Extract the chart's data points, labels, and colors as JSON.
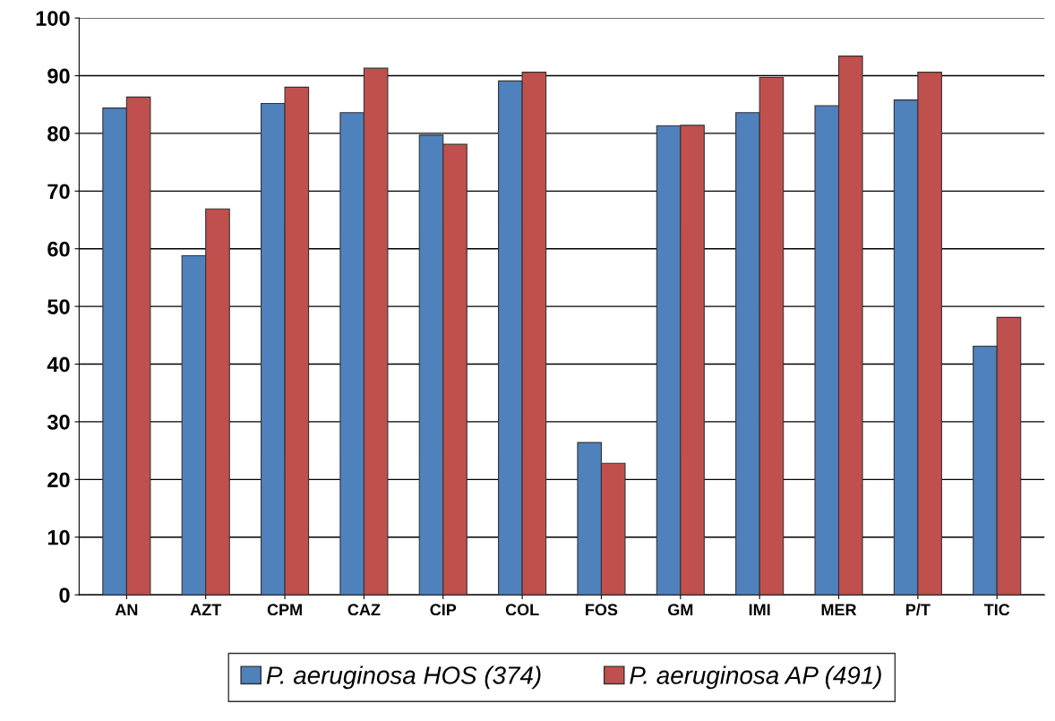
{
  "chart_data": {
    "type": "bar",
    "categories": [
      "AN",
      "AZT",
      "CPM",
      "CAZ",
      "CIP",
      "COL",
      "FOS",
      "GM",
      "IMI",
      "MER",
      "P/T",
      "TIC"
    ],
    "series": [
      {
        "name": "P. aeruginosa HOS (374)",
        "color": "#4f81bd",
        "values": [
          84.4,
          58.8,
          85.2,
          83.6,
          79.7,
          89.1,
          26.4,
          81.3,
          83.6,
          84.8,
          85.8,
          43.1
        ]
      },
      {
        "name": "P. aeruginosa AP (491)",
        "color": "#c0504d",
        "values": [
          86.3,
          66.9,
          88.0,
          91.3,
          78.1,
          90.6,
          22.8,
          81.4,
          89.7,
          93.4,
          90.6,
          48.1
        ]
      }
    ],
    "ylim": [
      0,
      100
    ],
    "yticks": [
      0,
      10,
      20,
      30,
      40,
      50,
      60,
      70,
      80,
      90,
      100
    ],
    "grid": "y",
    "legend": "bottom"
  }
}
